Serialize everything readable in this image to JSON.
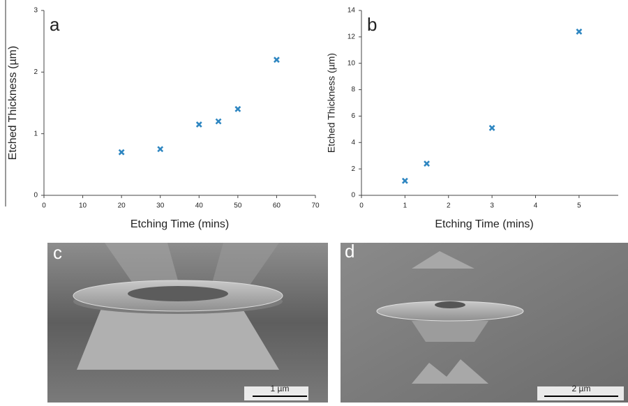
{
  "chart_data": [
    {
      "type": "scatter",
      "panel": "a",
      "xlabel": "Etching Time (mins)",
      "ylabel": "Etched Thickness (µm)",
      "xlim": [
        0,
        70
      ],
      "xticks": [
        0,
        10,
        20,
        30,
        40,
        50,
        60,
        70
      ],
      "ylim": [
        0,
        3
      ],
      "yticks": [
        0,
        1,
        2,
        3
      ],
      "series": [
        {
          "color": "#2e86c1",
          "x": [
            20,
            30,
            40,
            45,
            50,
            60
          ],
          "values": [
            0.7,
            0.75,
            1.15,
            1.2,
            1.4,
            2.2
          ]
        }
      ]
    },
    {
      "type": "scatter",
      "panel": "b",
      "xlabel": "Etching Time (mins)",
      "ylabel": "Etched Thickness (µm)",
      "xlim": [
        0,
        5.9
      ],
      "xticks": [
        0,
        1,
        2,
        3,
        4,
        5
      ],
      "ylim": [
        0,
        14
      ],
      "yticks": [
        0,
        2,
        4,
        6,
        8,
        10,
        12,
        14
      ],
      "series": [
        {
          "color": "#2e86c1",
          "x": [
            1,
            1.5,
            3,
            5
          ],
          "values": [
            1.1,
            2.4,
            5.1,
            12.4
          ]
        }
      ]
    }
  ],
  "images": [
    {
      "panel": "c",
      "scale_bar": "1 µm"
    },
    {
      "panel": "d",
      "scale_bar": "2 µm"
    }
  ]
}
